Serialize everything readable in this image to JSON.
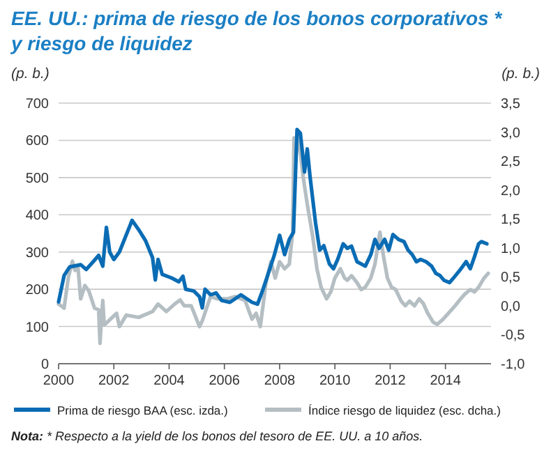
{
  "chart_data": {
    "type": "line",
    "title": "EE. UU.: prima de riesgo de los bonos corporativos * y riesgo de liquidez",
    "ylabel": "(p. b.)",
    "y2label": "(p. b.)",
    "xlim": [
      2000,
      2015.65
    ],
    "xticks": [
      2000,
      2002,
      2004,
      2006,
      2008,
      2010,
      2012,
      2014
    ],
    "ylim": [
      0,
      700
    ],
    "yticks": [
      0,
      100,
      200,
      300,
      400,
      500,
      600,
      700
    ],
    "y2lim": [
      -1,
      3.5
    ],
    "y2ticks": [
      {
        "value": -1,
        "label": "-1,0"
      },
      {
        "value": -0.5,
        "label": "-0,5"
      },
      {
        "value": 0,
        "label": "0,0"
      },
      {
        "value": 0.5,
        "label": "0,5"
      },
      {
        "value": 1,
        "label": "1,0"
      },
      {
        "value": 1.5,
        "label": "1,5"
      },
      {
        "value": 2,
        "label": "2,0"
      },
      {
        "value": 2.5,
        "label": "2,5"
      },
      {
        "value": 3,
        "label": "3,0"
      },
      {
        "value": 3.5,
        "label": "3,5"
      }
    ],
    "grid": "y",
    "legend": "bottom",
    "line_style": "solid",
    "marker": "none",
    "series": [
      {
        "name": "Prima de riesgo BAA (esc. izda.)",
        "color": "#0a6cb4",
        "x": [
          2000.0,
          2000.2,
          2000.4,
          2000.8,
          2001.0,
          2001.3,
          2001.45,
          2001.6,
          2001.73,
          2001.85,
          2002.0,
          2002.2,
          2002.66,
          2002.9,
          2003.15,
          2003.4,
          2003.5,
          2003.6,
          2003.75,
          2004.1,
          2004.35,
          2004.5,
          2004.6,
          2004.9,
          2005.1,
          2005.2,
          2005.3,
          2005.5,
          2005.7,
          2005.9,
          2006.2,
          2006.6,
          2007.0,
          2007.2,
          2007.4,
          2007.6,
          2007.8,
          2008.0,
          2008.18,
          2008.35,
          2008.5,
          2008.63,
          2008.75,
          2008.9,
          2009.0,
          2009.1,
          2009.3,
          2009.45,
          2009.6,
          2009.8,
          2009.95,
          2010.1,
          2010.3,
          2010.45,
          2010.6,
          2010.8,
          2010.95,
          2011.1,
          2011.3,
          2011.45,
          2011.6,
          2011.8,
          2011.95,
          2012.1,
          2012.3,
          2012.5,
          2012.65,
          2012.8,
          2012.95,
          2013.1,
          2013.3,
          2013.5,
          2013.65,
          2013.8,
          2013.95,
          2014.15,
          2014.3,
          2014.5,
          2014.75,
          2014.9,
          2015.05,
          2015.2,
          2015.3,
          2015.5
        ],
        "values": [
          166,
          237,
          260,
          266,
          253,
          278,
          291,
          262,
          366,
          300,
          280,
          300,
          385,
          360,
          330,
          285,
          225,
          280,
          240,
          230,
          220,
          235,
          200,
          195,
          180,
          150,
          200,
          185,
          190,
          170,
          165,
          185,
          165,
          160,
          200,
          245,
          290,
          345,
          293,
          334,
          353,
          629,
          619,
          515,
          577,
          503,
          378,
          305,
          317,
          268,
          255,
          280,
          322,
          310,
          316,
          274,
          268,
          262,
          293,
          334,
          310,
          334,
          305,
          347,
          334,
          328,
          305,
          293,
          274,
          280,
          274,
          262,
          243,
          237,
          224,
          218,
          231,
          249,
          274,
          255,
          287,
          322,
          328,
          322
        ]
      },
      {
        "name": "Índice riesgo de liquidez (esc. dcha.)",
        "color": "#b4bec3",
        "axis": "y2",
        "x": [
          2000.0,
          2000.2,
          2000.35,
          2000.5,
          2000.6,
          2000.7,
          2000.8,
          2000.95,
          2001.1,
          2001.3,
          2001.45,
          2001.5,
          2001.55,
          2001.6,
          2001.65,
          2001.75,
          2002.1,
          2002.2,
          2002.45,
          2002.9,
          2003.4,
          2003.6,
          2003.9,
          2004.2,
          2004.4,
          2004.55,
          2004.8,
          2005.1,
          2005.2,
          2005.5,
          2005.75,
          2006.1,
          2006.4,
          2006.75,
          2007.0,
          2007.15,
          2007.3,
          2007.5,
          2007.68,
          2007.84,
          2008.0,
          2008.18,
          2008.35,
          2008.47,
          2008.52,
          2008.6,
          2008.68,
          2008.85,
          2009.0,
          2009.2,
          2009.35,
          2009.5,
          2009.7,
          2009.85,
          2010.0,
          2010.2,
          2010.35,
          2010.45,
          2010.6,
          2010.8,
          2010.95,
          2011.1,
          2011.3,
          2011.45,
          2011.63,
          2011.75,
          2011.9,
          2012.05,
          2012.2,
          2012.4,
          2012.55,
          2012.7,
          2012.88,
          2013.05,
          2013.2,
          2013.35,
          2013.55,
          2013.7,
          2013.9,
          2014.05,
          2014.2,
          2014.35,
          2014.55,
          2014.7,
          2014.9,
          2015.05,
          2015.2,
          2015.4,
          2015.55
        ],
        "values": [
          0.03,
          -0.04,
          0.48,
          0.77,
          0.61,
          0.67,
          0.12,
          0.35,
          0.25,
          -0.04,
          -0.07,
          -0.65,
          -0.23,
          0.09,
          -0.33,
          -0.29,
          -0.13,
          -0.36,
          -0.16,
          -0.2,
          -0.1,
          0.03,
          -0.1,
          0.03,
          0.1,
          0,
          0,
          -0.36,
          -0.26,
          0.16,
          0.12,
          0.12,
          0.16,
          0.09,
          -0.23,
          -0.13,
          -0.36,
          0.38,
          0.76,
          0.48,
          0.76,
          0.64,
          0.72,
          1.27,
          2.9,
          2.63,
          2.94,
          2.23,
          1.75,
          1.19,
          0.64,
          0.32,
          0.12,
          0.24,
          0.48,
          0.64,
          0.48,
          0.44,
          0.52,
          0.4,
          0.28,
          0.32,
          0.48,
          0.72,
          1.27,
          0.88,
          0.48,
          0.32,
          0.28,
          0.08,
          0,
          0.08,
          0,
          0.12,
          0.04,
          -0.12,
          -0.28,
          -0.32,
          -0.24,
          -0.16,
          -0.08,
          0,
          0.12,
          0.2,
          0.28,
          0.24,
          0.32,
          0.48,
          0.56
        ]
      }
    ],
    "annotations": [
      "Nota: * Respecto a la yield de los bonos del tesoro de EE. UU. a 10 años."
    ]
  }
}
